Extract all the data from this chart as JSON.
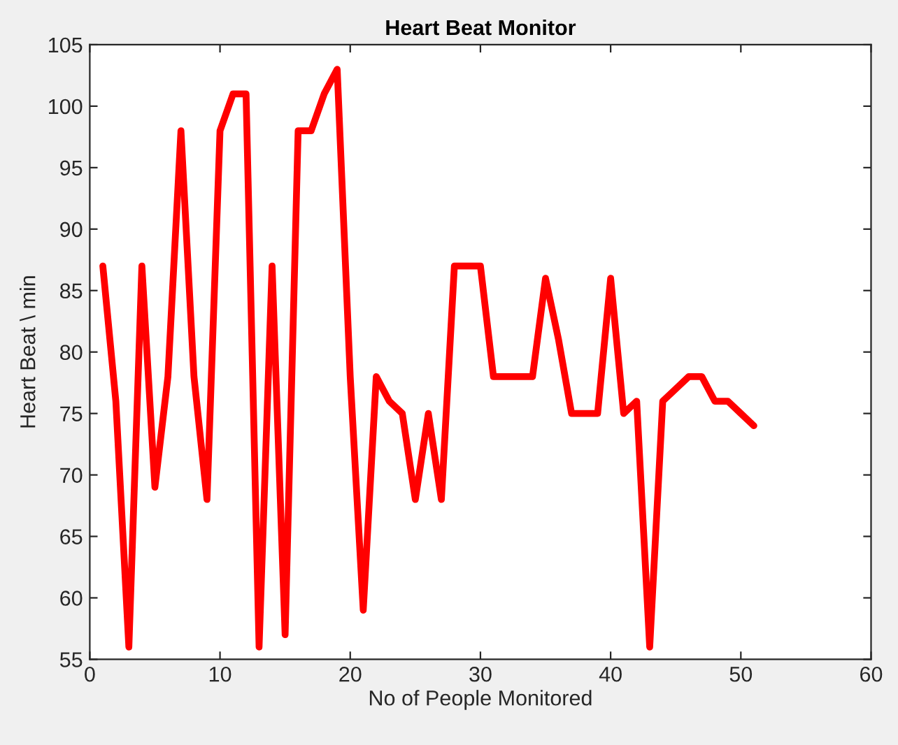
{
  "chart_data": {
    "type": "line",
    "title": "Heart Beat Monitor",
    "xlabel": "No of People Monitored",
    "ylabel": "Heart Beat \\ min",
    "x": [
      1,
      2,
      3,
      4,
      5,
      6,
      7,
      8,
      9,
      10,
      11,
      12,
      13,
      14,
      15,
      16,
      17,
      18,
      19,
      20,
      21,
      22,
      23,
      24,
      25,
      26,
      27,
      28,
      29,
      30,
      31,
      32,
      33,
      34,
      35,
      36,
      37,
      38,
      39,
      40,
      41,
      42,
      43,
      44,
      45,
      46,
      47,
      48,
      49,
      50,
      51
    ],
    "series": [
      {
        "color": "#ff0000",
        "values": [
          87,
          76,
          56,
          87,
          69,
          78,
          98,
          78,
          68,
          98,
          101,
          101,
          56,
          87,
          57,
          98,
          98,
          101,
          103,
          78,
          59,
          78,
          76,
          75,
          68,
          75,
          68,
          87,
          87,
          87,
          78,
          78,
          78,
          78,
          86,
          81,
          75,
          75,
          75,
          86,
          75,
          76,
          56,
          76,
          77,
          78,
          78,
          76,
          76,
          75,
          74
        ]
      }
    ],
    "xlim": [
      0,
      60
    ],
    "xticks": [
      0,
      10,
      20,
      30,
      40,
      50,
      60
    ],
    "ylim": [
      55,
      105
    ],
    "yticks": [
      55,
      60,
      65,
      70,
      75,
      80,
      85,
      90,
      95,
      100,
      105
    ],
    "grid": false,
    "legend": false,
    "marker": "none",
    "line_style": "solid"
  }
}
